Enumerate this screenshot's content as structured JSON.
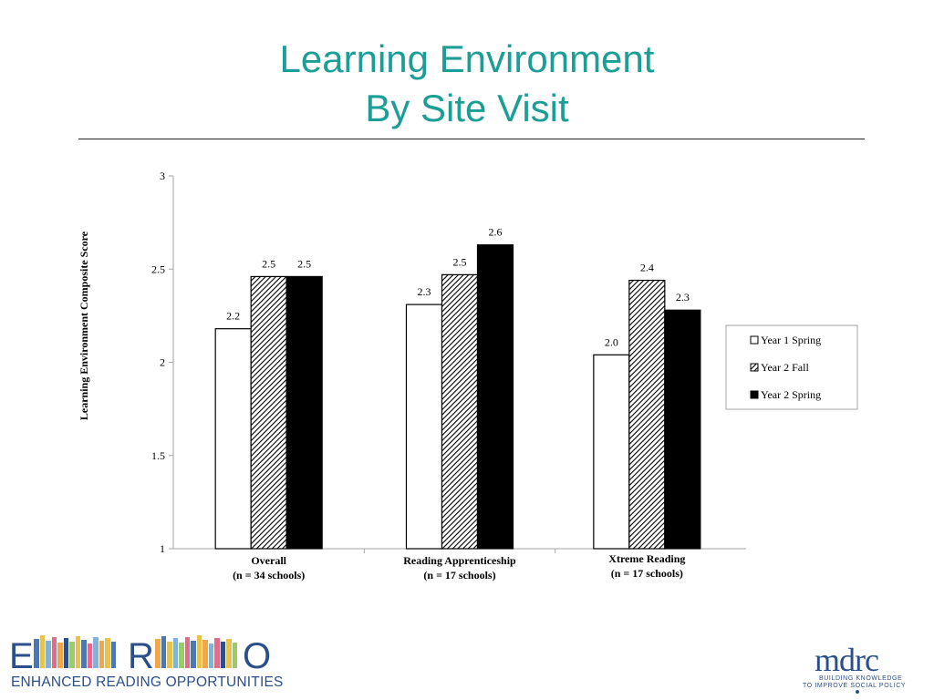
{
  "slide": {
    "title_line1": "Learning Environment",
    "title_line2": "By Site Visit"
  },
  "chart_data": {
    "type": "bar",
    "ylabel": "Learning Environment Composite Score",
    "ylim": [
      1,
      3
    ],
    "yticks": [
      "1",
      "1.5",
      "2",
      "2.5",
      "3"
    ],
    "yticks_values": [
      1,
      1.5,
      2,
      2.5,
      3
    ],
    "categories": [
      {
        "line1": "Overall",
        "line2": "(n = 34 schools)"
      },
      {
        "line1": "Reading Apprenticeship",
        "line2": "(n = 17 schools)"
      },
      {
        "line1": "Xtreme Reading",
        "line2": "(n = 17 schools)"
      }
    ],
    "series": [
      {
        "name": "Year 1 Spring",
        "pattern": "white",
        "values": [
          2.18,
          2.31,
          2.04
        ],
        "labels": [
          "2.2",
          "2.3",
          "2.0"
        ]
      },
      {
        "name": "Year 2 Fall",
        "pattern": "hatched",
        "values": [
          2.46,
          2.47,
          2.44
        ],
        "labels": [
          "2.5",
          "2.5",
          "2.4"
        ]
      },
      {
        "name": "Year 2 Spring",
        "pattern": "black",
        "values": [
          2.46,
          2.63,
          2.28
        ],
        "labels": [
          "2.5",
          "2.6",
          "2.3"
        ]
      }
    ],
    "legend_position": "right",
    "grid": false
  },
  "footer": {
    "ero_letter_e": "E",
    "ero_letter_r": "R",
    "ero_letter_o": "O",
    "ero_tagline": "ENHANCED READING OPPORTUNITIES",
    "mdrc_word": "mdrc",
    "mdrc_tag1": "BUILDING KNOWLEDGE",
    "mdrc_tag2": "TO IMPROVE SOCIAL POLICY"
  }
}
